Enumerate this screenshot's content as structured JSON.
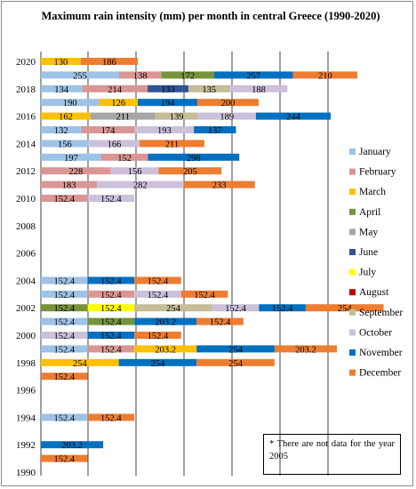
{
  "chart_data": {
    "type": "bar",
    "orientation": "horizontal",
    "stacked": true,
    "title": "Maximum rain intensity (mm) per month in central Greece (1990-2020)",
    "note": "* There are not data for the year 2005",
    "y_ticks": [
      "2020",
      "2018",
      "2016",
      "2014",
      "2012",
      "2010",
      "2008",
      "2006",
      "2004",
      "2002",
      "2000",
      "1998",
      "1996",
      "1994",
      "1992",
      "1990"
    ],
    "x_range": [
      0,
      1000
    ],
    "grid": "vertical lines",
    "legend_position": "right",
    "months": [
      "January",
      "February",
      "March",
      "April",
      "May",
      "June",
      "July",
      "August",
      "September",
      "October",
      "November",
      "December"
    ],
    "colors": {
      "January": "#9dc3e6",
      "February": "#d99694",
      "March": "#ffc000",
      "April": "#77933c",
      "May": "#a6a6a6",
      "June": "#2f5597",
      "July": "#ffff00",
      "August": "#c00000",
      "September": "#c4bd97",
      "October": "#ccc1da",
      "November": "#0070c0",
      "December": "#ed7d31"
    },
    "rows": [
      {
        "year": 2020,
        "segments": [
          {
            "m": "March",
            "v": 130
          },
          {
            "m": "December",
            "v": 186
          }
        ]
      },
      {
        "year": 2019,
        "segments": [
          {
            "m": "January",
            "v": 255
          },
          {
            "m": "February",
            "v": 138
          },
          {
            "m": "April",
            "v": 172
          },
          {
            "m": "November",
            "v": 257
          },
          {
            "m": "December",
            "v": 210
          }
        ]
      },
      {
        "year": 2018,
        "segments": [
          {
            "m": "January",
            "v": 134
          },
          {
            "m": "February",
            "v": 214
          },
          {
            "m": "June",
            "v": 133
          },
          {
            "m": "September",
            "v": 135
          },
          {
            "m": "October",
            "v": 188
          }
        ]
      },
      {
        "year": 2017,
        "segments": [
          {
            "m": "January",
            "v": 190
          },
          {
            "m": "March",
            "v": 126
          },
          {
            "m": "November",
            "v": 194
          },
          {
            "m": "December",
            "v": 200
          }
        ]
      },
      {
        "year": 2016,
        "segments": [
          {
            "m": "March",
            "v": 162
          },
          {
            "m": "May",
            "v": 211
          },
          {
            "m": "September",
            "v": 139
          },
          {
            "m": "October",
            "v": 189
          },
          {
            "m": "November",
            "v": 244
          }
        ]
      },
      {
        "year": 2015,
        "segments": [
          {
            "m": "January",
            "v": 132
          },
          {
            "m": "February",
            "v": 174
          },
          {
            "m": "October",
            "v": 193
          },
          {
            "m": "November",
            "v": 137
          }
        ]
      },
      {
        "year": 2014,
        "segments": [
          {
            "m": "January",
            "v": 156
          },
          {
            "m": "October",
            "v": 166
          },
          {
            "m": "December",
            "v": 211
          }
        ]
      },
      {
        "year": 2013,
        "segments": [
          {
            "m": "January",
            "v": 197
          },
          {
            "m": "February",
            "v": 152
          },
          {
            "m": "November",
            "v": 298
          }
        ]
      },
      {
        "year": 2012,
        "segments": [
          {
            "m": "February",
            "v": 228
          },
          {
            "m": "October",
            "v": 156
          },
          {
            "m": "December",
            "v": 205
          }
        ]
      },
      {
        "year": 2011,
        "segments": [
          {
            "m": "February",
            "v": 183
          },
          {
            "m": "October",
            "v": 282
          },
          {
            "m": "December",
            "v": 233
          }
        ]
      },
      {
        "year": 2010,
        "segments": [
          {
            "m": "February",
            "v": 152.4
          },
          {
            "m": "October",
            "v": 152.4
          }
        ]
      },
      {
        "year": 2009,
        "segments": []
      },
      {
        "year": 2008,
        "segments": []
      },
      {
        "year": 2007,
        "segments": []
      },
      {
        "year": 2006,
        "segments": []
      },
      {
        "year": 2005,
        "segments": []
      },
      {
        "year": 2004,
        "segments": [
          {
            "m": "January",
            "v": 152.4
          },
          {
            "m": "November",
            "v": 152.4
          },
          {
            "m": "December",
            "v": 152.4
          }
        ]
      },
      {
        "year": 2003,
        "segments": [
          {
            "m": "January",
            "v": 152.4
          },
          {
            "m": "February",
            "v": 152.4
          },
          {
            "m": "October",
            "v": 152.4
          },
          {
            "m": "December",
            "v": 152.4
          }
        ]
      },
      {
        "year": 2002,
        "segments": [
          {
            "m": "April",
            "v": 152.4
          },
          {
            "m": "July",
            "v": 152.4
          },
          {
            "m": "September",
            "v": 254
          },
          {
            "m": "October",
            "v": 152.4
          },
          {
            "m": "November",
            "v": 152.4
          },
          {
            "m": "December",
            "v": 254
          }
        ]
      },
      {
        "year": 2001,
        "segments": [
          {
            "m": "January",
            "v": 152.4
          },
          {
            "m": "April",
            "v": 152.4
          },
          {
            "m": "November",
            "v": 203.2
          },
          {
            "m": "December",
            "v": 152.4
          }
        ]
      },
      {
        "year": 2000,
        "segments": [
          {
            "m": "October",
            "v": 152.4
          },
          {
            "m": "November",
            "v": 152.4
          },
          {
            "m": "December",
            "v": 152.4
          }
        ]
      },
      {
        "year": 1999,
        "segments": [
          {
            "m": "January",
            "v": 152.4
          },
          {
            "m": "February",
            "v": 152.4
          },
          {
            "m": "March",
            "v": 203.2
          },
          {
            "m": "November",
            "v": 254
          },
          {
            "m": "December",
            "v": 203.2
          }
        ]
      },
      {
        "year": 1998,
        "segments": [
          {
            "m": "March",
            "v": 254
          },
          {
            "m": "November",
            "v": 254
          },
          {
            "m": "December",
            "v": 254
          }
        ]
      },
      {
        "year": 1997,
        "segments": [
          {
            "m": "December",
            "v": 152.4
          }
        ]
      },
      {
        "year": 1996,
        "segments": []
      },
      {
        "year": 1995,
        "segments": []
      },
      {
        "year": 1994,
        "segments": [
          {
            "m": "January",
            "v": 152.4
          },
          {
            "m": "December",
            "v": 152.4
          }
        ]
      },
      {
        "year": 1993,
        "segments": []
      },
      {
        "year": 1992,
        "segments": [
          {
            "m": "November",
            "v": 203.2
          }
        ]
      },
      {
        "year": 1991,
        "segments": [
          {
            "m": "December",
            "v": 152.4
          }
        ]
      },
      {
        "year": 1990,
        "segments": []
      }
    ]
  }
}
